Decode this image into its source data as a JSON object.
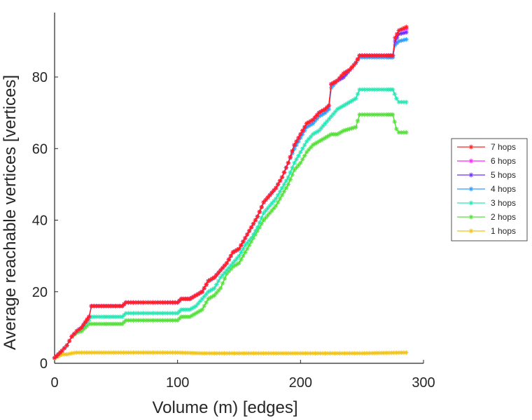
{
  "chart_data": {
    "type": "line",
    "xlabel": "Volume (m) [edges]",
    "ylabel": "Average reachable vertices [vertices]",
    "xlim": [
      0,
      300
    ],
    "ylim": [
      0,
      98
    ],
    "xticks": [
      "0",
      "100",
      "200",
      "300"
    ],
    "xtick_values": [
      0,
      100,
      200,
      300
    ],
    "yticks": [
      "0",
      "20",
      "40",
      "60",
      "80"
    ],
    "ytick_values": [
      0,
      20,
      40,
      60,
      80
    ],
    "grid": false,
    "legend_position": "right",
    "marker": "asterisk",
    "series": [
      {
        "name": "7 hops",
        "color": "#ff2020",
        "points": [
          [
            0,
            1.5
          ],
          [
            3,
            2.5
          ],
          [
            6,
            3.5
          ],
          [
            10,
            5
          ],
          [
            14,
            7.5
          ],
          [
            18,
            9
          ],
          [
            22,
            10
          ],
          [
            25,
            11.5
          ],
          [
            28,
            13
          ],
          [
            30,
            16
          ],
          [
            40,
            16
          ],
          [
            55,
            16
          ],
          [
            58,
            17
          ],
          [
            80,
            17
          ],
          [
            100,
            17
          ],
          [
            103,
            18
          ],
          [
            110,
            18
          ],
          [
            115,
            19
          ],
          [
            120,
            20
          ],
          [
            125,
            23
          ],
          [
            130,
            24
          ],
          [
            135,
            26
          ],
          [
            140,
            28
          ],
          [
            145,
            31
          ],
          [
            150,
            32
          ],
          [
            155,
            35
          ],
          [
            160,
            38
          ],
          [
            165,
            41
          ],
          [
            170,
            45
          ],
          [
            175,
            47
          ],
          [
            180,
            49
          ],
          [
            185,
            52
          ],
          [
            190,
            56
          ],
          [
            195,
            61
          ],
          [
            200,
            64
          ],
          [
            205,
            67
          ],
          [
            210,
            68
          ],
          [
            215,
            70
          ],
          [
            220,
            71
          ],
          [
            223,
            72
          ],
          [
            225,
            78
          ],
          [
            230,
            79
          ],
          [
            235,
            81
          ],
          [
            240,
            82
          ],
          [
            245,
            84
          ],
          [
            248,
            86
          ],
          [
            260,
            86
          ],
          [
            270,
            86
          ],
          [
            275,
            86
          ],
          [
            277,
            91
          ],
          [
            280,
            93
          ],
          [
            286,
            94
          ]
        ]
      },
      {
        "name": "6 hops",
        "color": "#ff20ff",
        "points": [
          [
            0,
            1.5
          ],
          [
            3,
            2.5
          ],
          [
            6,
            3.5
          ],
          [
            10,
            5
          ],
          [
            14,
            7.5
          ],
          [
            18,
            9
          ],
          [
            22,
            10
          ],
          [
            25,
            11.5
          ],
          [
            28,
            13
          ],
          [
            30,
            16
          ],
          [
            40,
            16
          ],
          [
            55,
            16
          ],
          [
            58,
            17
          ],
          [
            80,
            17
          ],
          [
            100,
            17
          ],
          [
            103,
            18
          ],
          [
            110,
            18
          ],
          [
            115,
            19
          ],
          [
            120,
            20
          ],
          [
            125,
            23
          ],
          [
            130,
            24
          ],
          [
            135,
            26
          ],
          [
            140,
            28
          ],
          [
            145,
            31
          ],
          [
            150,
            32
          ],
          [
            155,
            35
          ],
          [
            160,
            38
          ],
          [
            165,
            41
          ],
          [
            170,
            45
          ],
          [
            175,
            47
          ],
          [
            180,
            49
          ],
          [
            185,
            52
          ],
          [
            190,
            56
          ],
          [
            195,
            61
          ],
          [
            200,
            64
          ],
          [
            205,
            67
          ],
          [
            210,
            68
          ],
          [
            215,
            70
          ],
          [
            220,
            71
          ],
          [
            223,
            72
          ],
          [
            225,
            78
          ],
          [
            230,
            79
          ],
          [
            235,
            81
          ],
          [
            240,
            82
          ],
          [
            245,
            84
          ],
          [
            248,
            86
          ],
          [
            260,
            86
          ],
          [
            270,
            86
          ],
          [
            275,
            86
          ],
          [
            277,
            91
          ],
          [
            280,
            93
          ],
          [
            286,
            93.5
          ]
        ]
      },
      {
        "name": "5 hops",
        "color": "#6a2cff",
        "points": [
          [
            0,
            1.5
          ],
          [
            3,
            2.5
          ],
          [
            6,
            3.5
          ],
          [
            10,
            5
          ],
          [
            14,
            7.5
          ],
          [
            18,
            9
          ],
          [
            22,
            10
          ],
          [
            25,
            11.5
          ],
          [
            28,
            13
          ],
          [
            30,
            16
          ],
          [
            40,
            16
          ],
          [
            55,
            16
          ],
          [
            58,
            17
          ],
          [
            80,
            17
          ],
          [
            100,
            17
          ],
          [
            103,
            18
          ],
          [
            110,
            18
          ],
          [
            115,
            19
          ],
          [
            120,
            20
          ],
          [
            125,
            23
          ],
          [
            130,
            24
          ],
          [
            135,
            26
          ],
          [
            140,
            28
          ],
          [
            145,
            31
          ],
          [
            150,
            32
          ],
          [
            155,
            35
          ],
          [
            160,
            38
          ],
          [
            165,
            41
          ],
          [
            170,
            45
          ],
          [
            175,
            47
          ],
          [
            180,
            49
          ],
          [
            185,
            52
          ],
          [
            190,
            56
          ],
          [
            195,
            61
          ],
          [
            200,
            64
          ],
          [
            205,
            67
          ],
          [
            210,
            68
          ],
          [
            215,
            70
          ],
          [
            220,
            71
          ],
          [
            223,
            72
          ],
          [
            225,
            78
          ],
          [
            230,
            79
          ],
          [
            235,
            80
          ],
          [
            240,
            82
          ],
          [
            245,
            84
          ],
          [
            248,
            86
          ],
          [
            260,
            86
          ],
          [
            270,
            86
          ],
          [
            275,
            86
          ],
          [
            277,
            90
          ],
          [
            280,
            92
          ],
          [
            286,
            92.5
          ]
        ]
      },
      {
        "name": "4 hops",
        "color": "#2d9cff",
        "points": [
          [
            0,
            1.5
          ],
          [
            3,
            2.5
          ],
          [
            6,
            3.5
          ],
          [
            10,
            5
          ],
          [
            14,
            7.5
          ],
          [
            18,
            9
          ],
          [
            22,
            10
          ],
          [
            25,
            11.5
          ],
          [
            28,
            13
          ],
          [
            30,
            16
          ],
          [
            40,
            16
          ],
          [
            55,
            16
          ],
          [
            58,
            17
          ],
          [
            80,
            17
          ],
          [
            100,
            17
          ],
          [
            103,
            18
          ],
          [
            110,
            18
          ],
          [
            115,
            19
          ],
          [
            120,
            20
          ],
          [
            125,
            23
          ],
          [
            130,
            24
          ],
          [
            135,
            26
          ],
          [
            140,
            28
          ],
          [
            145,
            31
          ],
          [
            150,
            32
          ],
          [
            155,
            35
          ],
          [
            160,
            38
          ],
          [
            165,
            41
          ],
          [
            170,
            45
          ],
          [
            175,
            47
          ],
          [
            180,
            49
          ],
          [
            185,
            52
          ],
          [
            190,
            56
          ],
          [
            195,
            60
          ],
          [
            200,
            63
          ],
          [
            205,
            66
          ],
          [
            210,
            67
          ],
          [
            215,
            69
          ],
          [
            220,
            70
          ],
          [
            223,
            71
          ],
          [
            225,
            77
          ],
          [
            230,
            79
          ],
          [
            235,
            80
          ],
          [
            240,
            82
          ],
          [
            245,
            84
          ],
          [
            248,
            85.5
          ],
          [
            260,
            85.5
          ],
          [
            270,
            85.5
          ],
          [
            275,
            85.5
          ],
          [
            277,
            89
          ],
          [
            280,
            90
          ],
          [
            286,
            90.5
          ]
        ]
      },
      {
        "name": "3 hops",
        "color": "#29e6b4",
        "points": [
          [
            0,
            1.5
          ],
          [
            3,
            2.5
          ],
          [
            6,
            3.5
          ],
          [
            10,
            5
          ],
          [
            14,
            7.5
          ],
          [
            18,
            9
          ],
          [
            22,
            10
          ],
          [
            25,
            11
          ],
          [
            28,
            12
          ],
          [
            30,
            13
          ],
          [
            40,
            13
          ],
          [
            55,
            13
          ],
          [
            58,
            14
          ],
          [
            80,
            14
          ],
          [
            100,
            14
          ],
          [
            103,
            15
          ],
          [
            110,
            15
          ],
          [
            115,
            16
          ],
          [
            120,
            18
          ],
          [
            125,
            20
          ],
          [
            130,
            21
          ],
          [
            135,
            24
          ],
          [
            140,
            26
          ],
          [
            145,
            28
          ],
          [
            150,
            30
          ],
          [
            155,
            33
          ],
          [
            160,
            35
          ],
          [
            165,
            38
          ],
          [
            170,
            42
          ],
          [
            175,
            44
          ],
          [
            180,
            46
          ],
          [
            185,
            49
          ],
          [
            190,
            52
          ],
          [
            195,
            56
          ],
          [
            200,
            59
          ],
          [
            205,
            62
          ],
          [
            210,
            64
          ],
          [
            215,
            65
          ],
          [
            220,
            67
          ],
          [
            225,
            69
          ],
          [
            230,
            71
          ],
          [
            235,
            72
          ],
          [
            240,
            73
          ],
          [
            245,
            74
          ],
          [
            248,
            76.5
          ],
          [
            260,
            76.5
          ],
          [
            270,
            76.5
          ],
          [
            275,
            76.5
          ],
          [
            278,
            74
          ],
          [
            280,
            73
          ],
          [
            286,
            73
          ]
        ]
      },
      {
        "name": "2 hops",
        "color": "#55e03a",
        "points": [
          [
            0,
            1.5
          ],
          [
            3,
            2.5
          ],
          [
            6,
            3.5
          ],
          [
            10,
            5
          ],
          [
            14,
            7.5
          ],
          [
            18,
            8.5
          ],
          [
            22,
            9
          ],
          [
            25,
            10
          ],
          [
            28,
            11
          ],
          [
            30,
            11
          ],
          [
            40,
            11
          ],
          [
            55,
            11
          ],
          [
            58,
            12
          ],
          [
            80,
            12
          ],
          [
            100,
            12
          ],
          [
            103,
            13
          ],
          [
            110,
            13
          ],
          [
            115,
            14
          ],
          [
            120,
            15
          ],
          [
            125,
            18
          ],
          [
            130,
            19
          ],
          [
            135,
            21
          ],
          [
            140,
            25
          ],
          [
            145,
            27
          ],
          [
            150,
            28
          ],
          [
            155,
            31
          ],
          [
            160,
            34
          ],
          [
            165,
            37
          ],
          [
            170,
            40
          ],
          [
            175,
            42
          ],
          [
            180,
            44
          ],
          [
            185,
            47
          ],
          [
            190,
            50
          ],
          [
            195,
            54
          ],
          [
            200,
            56
          ],
          [
            205,
            59
          ],
          [
            210,
            61
          ],
          [
            215,
            62
          ],
          [
            220,
            63
          ],
          [
            225,
            64
          ],
          [
            230,
            64
          ],
          [
            235,
            65
          ],
          [
            240,
            65.5
          ],
          [
            245,
            66
          ],
          [
            248,
            69.5
          ],
          [
            260,
            69.5
          ],
          [
            270,
            69.5
          ],
          [
            275,
            69.5
          ],
          [
            278,
            65.5
          ],
          [
            280,
            64.5
          ],
          [
            286,
            64.5
          ]
        ]
      },
      {
        "name": "1 hops",
        "color": "#f0c419",
        "points": [
          [
            0,
            1.5
          ],
          [
            3,
            2
          ],
          [
            6,
            2.5
          ],
          [
            10,
            2.5
          ],
          [
            14,
            2.8
          ],
          [
            18,
            3
          ],
          [
            30,
            3
          ],
          [
            60,
            3
          ],
          [
            90,
            3
          ],
          [
            100,
            3
          ],
          [
            120,
            2.8
          ],
          [
            150,
            2.8
          ],
          [
            200,
            2.8
          ],
          [
            250,
            2.8
          ],
          [
            286,
            3
          ]
        ]
      }
    ]
  }
}
